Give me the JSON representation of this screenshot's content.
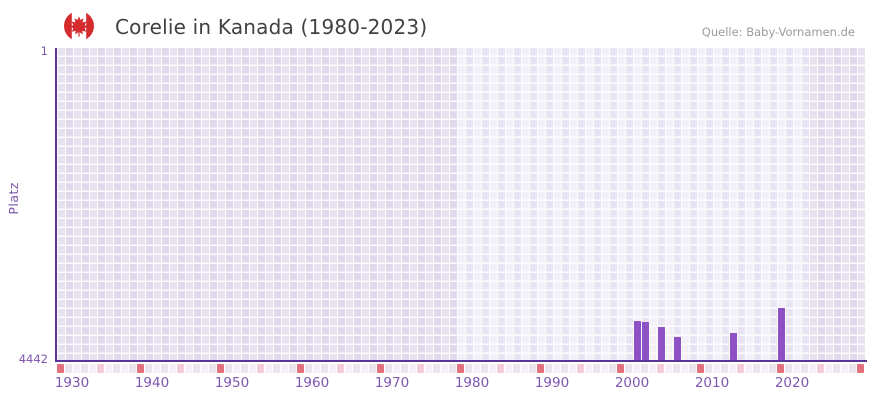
{
  "header": {
    "flag_icon": "canada-flag-icon",
    "title": "Corelie in Kanada (1980-2023)",
    "source": "Quelle: Baby-Vornamen.de"
  },
  "y_axis": {
    "label": "Platz",
    "top_tick": "1",
    "bottom_tick": "4442"
  },
  "chart_data": {
    "type": "bar",
    "title": "Corelie in Kanada (1980-2023)",
    "xlabel": "",
    "ylabel": "Platz",
    "y_inverted": true,
    "ylim": [
      1,
      4442
    ],
    "x_range_years": [
      1930,
      2030
    ],
    "x_tick_labels": [
      "1930",
      "1940",
      "1950",
      "1960",
      "1970",
      "1980",
      "1990",
      "2000",
      "2010",
      "2020"
    ],
    "highlight_band_years": {
      "from": 1980,
      "to": 2023
    },
    "tick_marks": {
      "decade_interval": 10,
      "half_decade_interval": 5
    },
    "legend": "none",
    "grid": true,
    "series": [
      {
        "name": "Platz",
        "points": [
          {
            "year": 2002,
            "rank": 3886
          },
          {
            "year": 2003,
            "rank": 3907
          },
          {
            "year": 2005,
            "rank": 3971
          },
          {
            "year": 2007,
            "rank": 4114
          },
          {
            "year": 2014,
            "rank": 4057
          },
          {
            "year": 2020,
            "rank": 3697
          }
        ]
      }
    ],
    "colors": {
      "bar": "#8c52c5",
      "axis_line": "#5a3497",
      "tick_label": "#7e57ae",
      "grid_cell_light": "#e7e1f0",
      "grid_cell_dark": "#e0d9eb",
      "grid_cell_highlight_light": "#f3f0fa",
      "grid_cell_highlight_dark": "#e9e4f3",
      "tick_square_decade": "#e1707c",
      "tick_square_half_decade": "#f2cedb",
      "tick_square_even": "#f5f0f7",
      "tick_square_odd": "#ebe5f2",
      "title_text": "#414141",
      "source_text": "#9b9b9b",
      "flag_red": "#d52b2e"
    }
  }
}
